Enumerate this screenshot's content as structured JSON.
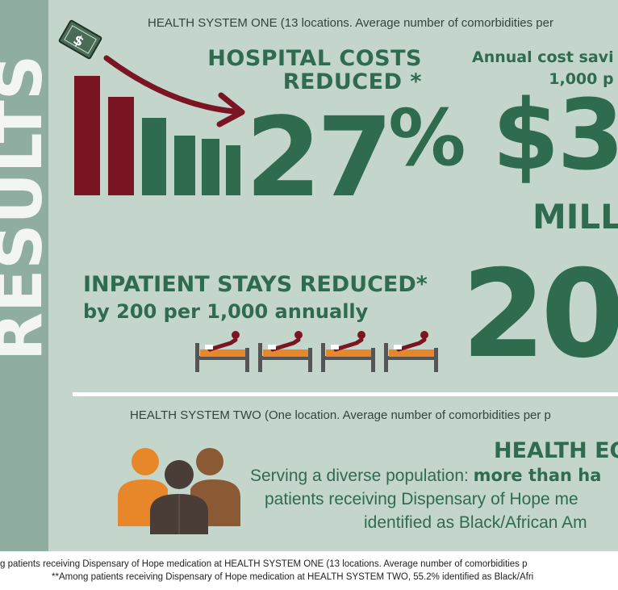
{
  "sidebar": {
    "label": "RESULTS"
  },
  "health_system_one": {
    "header": "HEALTH SYSTEM ONE (13 locations. Average number of comorbidities per",
    "hospital_costs": {
      "title_line1": "HOSPITAL COSTS",
      "title_line2": "REDUCED *",
      "value": "27",
      "unit": "%"
    },
    "savings": {
      "title_line1": "Annual cost savi",
      "title_line2": "1,000 p",
      "value": "$3",
      "unit": "MILL"
    },
    "inpatient": {
      "title": "INPATIENT STAYS REDUCED*",
      "subtitle": "by 200 per 1,000 annually",
      "value": "20"
    }
  },
  "health_system_two": {
    "header": "HEALTH SYSTEM TWO (One location. Average number of comorbidities per p",
    "equity": {
      "title": "HEALTH EQ",
      "line1_plain": "Serving a diverse population: ",
      "line1_bold": "more than ha",
      "line2": "patients receiving Dispensary of Hope me",
      "line3": "identified as Black/African Am"
    }
  },
  "footnotes": {
    "line1": "g patients receiving Dispensary of Hope medication at HEALTH SYSTEM ONE (13 locations. Average number of comorbidities p",
    "line2": "**Among patients receiving Dispensary of Hope medication at HEALTH SYSTEM TWO, 55.2% identified as Black/Afri"
  },
  "icons": [
    "money-icon",
    "cost-bar-chart-icon",
    "hospital-bed-icon",
    "people-group-icon"
  ],
  "colors": {
    "green": "#2e6b4f",
    "maroon": "#7a1623",
    "panel": "#c4d6cb",
    "sidebar": "#8fae9f",
    "orange": "#e8862a",
    "brown": "#8a5a35",
    "dark": "#4a3d38"
  }
}
